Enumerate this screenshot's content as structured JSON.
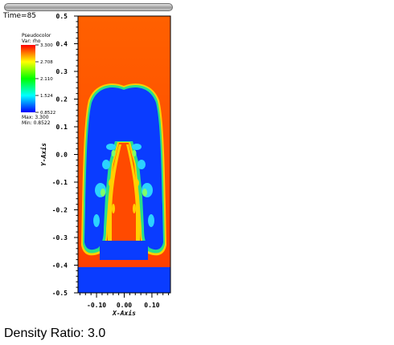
{
  "window": {
    "time_label": "Time=85"
  },
  "legend": {
    "title_line1": "Pseudocolor",
    "title_line2": "Var: rho",
    "max_label": "Max: 3.300",
    "min_label": "Min: 0.8522",
    "colormap": [
      "#0000ff",
      "#00ffff",
      "#00ff00",
      "#ffff00",
      "#ff0000"
    ],
    "ticks": [
      "3.300",
      "2.708",
      "2.110",
      "1.524",
      "0.8522"
    ]
  },
  "footer": {
    "density_ratio": "Density Ratio: 3.0"
  },
  "chart_data": {
    "type": "heatmap",
    "variable": "rho",
    "xlabel": "X-Axis",
    "ylabel": "Y-Axis",
    "xlim": [
      -0.167,
      0.167
    ],
    "ylim": [
      -0.5,
      0.5
    ],
    "x_tick_labels": [
      "-0.10",
      "0.00",
      "0.10"
    ],
    "x_ticks": [
      -0.1,
      0.0,
      0.1
    ],
    "y_tick_labels": [
      "0.5",
      "0.4",
      "0.3",
      "0.2",
      "0.1",
      "0.0",
      "-0.1",
      "-0.2",
      "-0.3",
      "-0.4",
      "-0.5"
    ],
    "y_ticks": [
      0.5,
      0.4,
      0.3,
      0.2,
      0.1,
      0.0,
      -0.1,
      -0.2,
      -0.3,
      -0.4,
      -0.5
    ],
    "value_range": [
      0.8522,
      3.3
    ],
    "heavy_fluid_color": "#ff4a00",
    "light_fluid_color": "#0a3cff"
  }
}
